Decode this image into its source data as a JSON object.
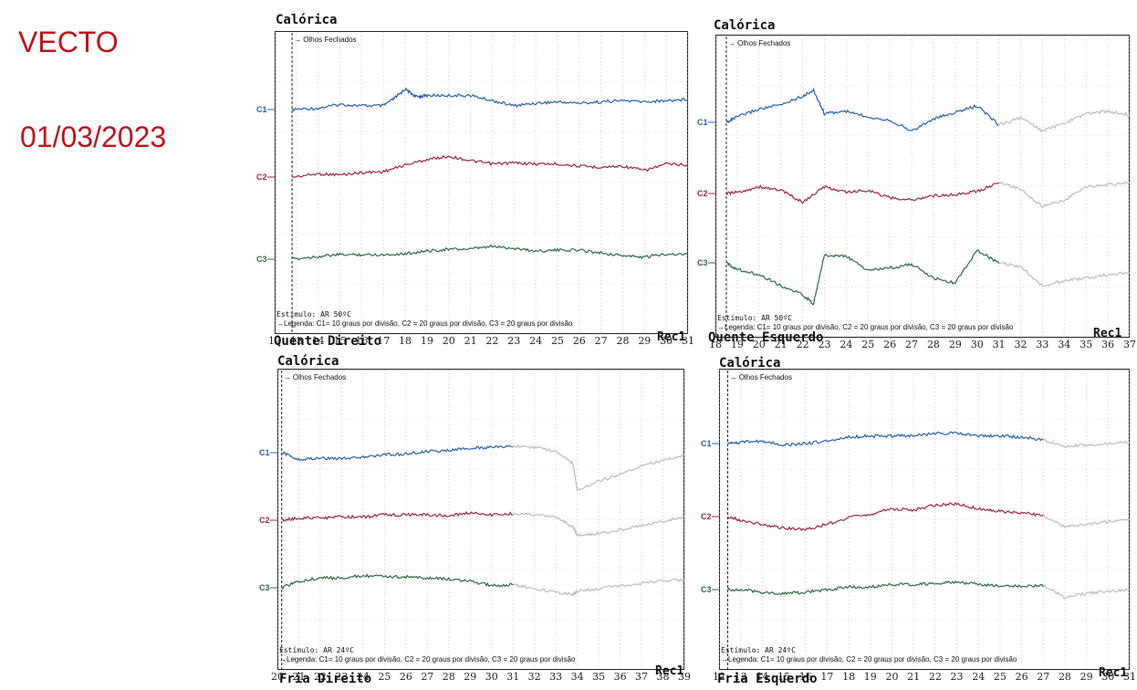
{
  "header": {
    "title": "VECTO",
    "date": "01/03/2023"
  },
  "colors": {
    "c1": "#2a63a3",
    "c2": "#9a2a45",
    "c3": "#2f6a45",
    "faded": "#b7b7c2",
    "accent": "#c0141b"
  },
  "chart_data": [
    {
      "type": "line",
      "title": "Calórica",
      "name": "Quente Direito",
      "record": "Rec1",
      "annotation": "Olhos Fechados",
      "stimulus": "Estímulo: AR 50ºC",
      "legend": "Legenda: C1= 10 graus por divisão, C2 = 20 graus por divisão, C3 = 20 graus por divisão",
      "x_ticks": [
        "12",
        "13",
        "14",
        "15",
        "16",
        "17",
        "18",
        "19",
        "20",
        "21",
        "22",
        "23",
        "24",
        "25",
        "26",
        "27",
        "28",
        "29",
        "30",
        "31"
      ],
      "xlim": [
        12,
        31
      ],
      "channels": [
        "C1",
        "C2",
        "C3"
      ],
      "eyes_closed_at": 12.8,
      "series": [
        {
          "name": "C1",
          "x": [
            12.8,
            14,
            15,
            16,
            17,
            17.6,
            18,
            18.5,
            19,
            20,
            21,
            22,
            23,
            24,
            25,
            26,
            27,
            28,
            29,
            30,
            31
          ],
          "values": [
            0,
            0.1,
            0.4,
            0.3,
            0.3,
            1,
            1.6,
            1,
            1.1,
            1.1,
            1.1,
            0.7,
            0.3,
            0.5,
            0.6,
            0.5,
            0.6,
            0.7,
            0.6,
            0.7,
            0.8
          ]
        },
        {
          "name": "C2",
          "x": [
            12.8,
            14,
            15,
            16,
            17,
            18,
            19,
            20,
            21,
            22,
            23,
            24,
            25,
            26,
            27,
            28,
            29,
            30,
            31
          ],
          "values": [
            0,
            0.3,
            0.2,
            0.4,
            0.5,
            1.1,
            1.6,
            1.9,
            1.5,
            1.2,
            1.3,
            1.2,
            1.2,
            1.0,
            0.9,
            1.0,
            0.6,
            1.2,
            1.1
          ]
        },
        {
          "name": "C3",
          "x": [
            12.8,
            14,
            15,
            16,
            17,
            18,
            19,
            20,
            21,
            22,
            23,
            24,
            25,
            26,
            27,
            28,
            29,
            30,
            31
          ],
          "values": [
            0,
            0.3,
            0.5,
            0.5,
            0.5,
            0.6,
            0.9,
            1.1,
            1.1,
            1.4,
            1.2,
            0.9,
            1.0,
            1.0,
            0.7,
            0.4,
            0.2,
            0.6,
            0.5
          ]
        }
      ]
    },
    {
      "type": "line",
      "title": "Calórica",
      "name": "Quente Esquerdo",
      "record": "Rec1",
      "annotation": "Olhos Fechados",
      "stimulus": "Estímulo: AR 50ºC",
      "legend": "Legenda: C1= 10 graus por divisão, C2 = 20 graus por divisão, C3 = 20 graus por divisão",
      "x_ticks": [
        "18",
        "19",
        "20",
        "21",
        "22",
        "23",
        "24",
        "25",
        "26",
        "27",
        "28",
        "29",
        "30",
        "31",
        "32",
        "33",
        "34",
        "35",
        "36",
        "37"
      ],
      "xlim": [
        18,
        37
      ],
      "channels": [
        "C1",
        "C2",
        "C3"
      ],
      "eyes_closed_at": 18.5,
      "series": [
        {
          "name": "C1",
          "x": [
            18.5,
            19,
            20,
            21,
            22,
            22.5,
            23,
            24,
            25,
            26,
            27,
            28,
            29,
            30,
            31,
            32,
            33,
            34,
            35,
            36,
            37
          ],
          "values": [
            0,
            0.5,
            1.2,
            1.6,
            2.4,
            2.9,
            0.8,
            1.0,
            0.5,
            0.2,
            -0.8,
            0.3,
            0.9,
            1.5,
            -0.2,
            0.4,
            -0.8,
            -0.1,
            0.8,
            1.0,
            0.7
          ]
        },
        {
          "name": "C2",
          "x": [
            18.5,
            19,
            20,
            21,
            22,
            23,
            24,
            25,
            26,
            27,
            28,
            29,
            30,
            31,
            32,
            33,
            34,
            35,
            36,
            37
          ],
          "values": [
            0,
            0.1,
            0.6,
            0.3,
            -0.8,
            0.6,
            0.1,
            0.3,
            -0.4,
            -0.6,
            -0.2,
            -0.1,
            0.2,
            1.0,
            0.4,
            -1.2,
            -0.6,
            0.6,
            0.8,
            1.0
          ]
        },
        {
          "name": "C3",
          "x": [
            18.5,
            19,
            20,
            21,
            22,
            22.5,
            23,
            24,
            25,
            26,
            27,
            28,
            29,
            30,
            31,
            32,
            33,
            34,
            35,
            36,
            37
          ],
          "values": [
            0,
            -0.5,
            -0.9,
            -1.8,
            -2.5,
            -3.2,
            0.6,
            0.5,
            -0.6,
            -0.4,
            -0.1,
            -1.2,
            -1.6,
            1.0,
            0.0,
            -0.3,
            -1.8,
            -1.4,
            -1.2,
            -0.9,
            -0.8
          ]
        }
      ]
    },
    {
      "type": "line",
      "title": "Calórica",
      "name": "Fria Direito",
      "record": "Rec1",
      "annotation": "Olhos Fechados",
      "stimulus": "Estímulo: AR 24ºC",
      "legend": "Legenda: C1= 10 graus por divisão, C2 = 20 graus por divisão, C3 = 20 graus por divisão",
      "x_ticks": [
        "20",
        "21",
        "22",
        "23",
        "24",
        "25",
        "26",
        "27",
        "28",
        "29",
        "30",
        "31",
        "32",
        "33",
        "34",
        "35",
        "36",
        "37",
        "38",
        "39"
      ],
      "xlim": [
        20,
        39
      ],
      "channels": [
        "C1",
        "C2",
        "C3"
      ],
      "eyes_closed_at": 20.2,
      "series": [
        {
          "name": "C1",
          "x": [
            20.2,
            21,
            22,
            23,
            24,
            25,
            26,
            27,
            28,
            29,
            30,
            31,
            32,
            33,
            33.8,
            34,
            35,
            36,
            37,
            38,
            39
          ],
          "values": [
            0,
            -0.6,
            -0.5,
            -0.5,
            -0.4,
            -0.2,
            -0.1,
            0.1,
            0.2,
            0.4,
            0.5,
            0.6,
            0.5,
            0.1,
            -1.0,
            -3.4,
            -2.6,
            -2.0,
            -1.2,
            -0.7,
            -0.2
          ]
        },
        {
          "name": "C2",
          "x": [
            20.2,
            21,
            22,
            23,
            24,
            25,
            26,
            27,
            28,
            29,
            30,
            31,
            32,
            33,
            33.8,
            34,
            35,
            36,
            37,
            38,
            39
          ],
          "values": [
            0,
            0.2,
            0.2,
            0.3,
            0.3,
            0.5,
            0.5,
            0.5,
            0.4,
            0.7,
            0.5,
            0.6,
            0.5,
            0.3,
            -0.6,
            -1.4,
            -1.2,
            -0.9,
            -0.5,
            -0.1,
            0.3
          ]
        },
        {
          "name": "C3",
          "x": [
            20.2,
            21,
            22,
            23,
            24,
            25,
            26,
            27,
            28,
            29,
            30,
            31,
            32,
            33,
            33.8,
            34,
            35,
            36,
            37,
            38,
            39
          ],
          "values": [
            0,
            0.6,
            0.9,
            0.9,
            1.1,
            1.0,
            1.0,
            0.9,
            0.8,
            0.6,
            0.2,
            0.3,
            -0.1,
            -0.4,
            -0.6,
            -0.3,
            -0.1,
            0.2,
            0.4,
            0.7,
            0.7
          ]
        }
      ]
    },
    {
      "type": "line",
      "title": "Calórica",
      "name": "Fria Esquerdo",
      "record": "Rec1",
      "annotation": "Olhos Fechados",
      "stimulus": "Estímulo: AR 24ºC",
      "legend": "Legenda: C1= 10 graus por divisão, C2 = 20 graus por divisão, C3 = 20 graus por divisão",
      "x_ticks": [
        "12",
        "13",
        "14",
        "15",
        "16",
        "17",
        "18",
        "19",
        "20",
        "21",
        "22",
        "23",
        "24",
        "25",
        "26",
        "27",
        "28",
        "29",
        "30",
        "31"
      ],
      "xlim": [
        12,
        31
      ],
      "channels": [
        "C1",
        "C2",
        "C3"
      ],
      "eyes_closed_at": 12.4,
      "series": [
        {
          "name": "C1",
          "x": [
            12.4,
            13,
            14,
            15,
            16,
            17,
            18,
            19,
            20,
            21,
            22,
            23,
            24,
            25,
            26,
            27,
            28,
            29,
            30,
            31
          ],
          "values": [
            0,
            0.1,
            0.2,
            -0.1,
            0.0,
            0.2,
            0.5,
            0.6,
            0.6,
            0.6,
            0.8,
            0.8,
            0.6,
            0.6,
            0.5,
            0.3,
            -0.2,
            -0.1,
            0.0,
            0.1
          ]
        },
        {
          "name": "C2",
          "x": [
            12.4,
            13,
            14,
            15,
            16,
            17,
            18,
            19,
            20,
            21,
            22,
            23,
            24,
            25,
            26,
            27,
            28,
            29,
            30,
            31
          ],
          "values": [
            0,
            -0.3,
            -0.6,
            -0.9,
            -1.0,
            -0.6,
            -0.1,
            0.2,
            0.6,
            0.5,
            0.9,
            1.0,
            0.6,
            0.4,
            0.3,
            0.1,
            -0.8,
            -0.6,
            -0.4,
            -0.2
          ]
        },
        {
          "name": "C3",
          "x": [
            12.4,
            13,
            14,
            15,
            16,
            17,
            18,
            19,
            20,
            21,
            22,
            23,
            24,
            25,
            26,
            27,
            28,
            29,
            30,
            31
          ],
          "values": [
            0,
            0.0,
            -0.2,
            -0.3,
            -0.2,
            0.0,
            0.2,
            0.2,
            0.4,
            0.4,
            0.5,
            0.6,
            0.4,
            0.3,
            0.3,
            0.3,
            -0.6,
            -0.3,
            -0.1,
            0.0
          ]
        }
      ]
    }
  ]
}
